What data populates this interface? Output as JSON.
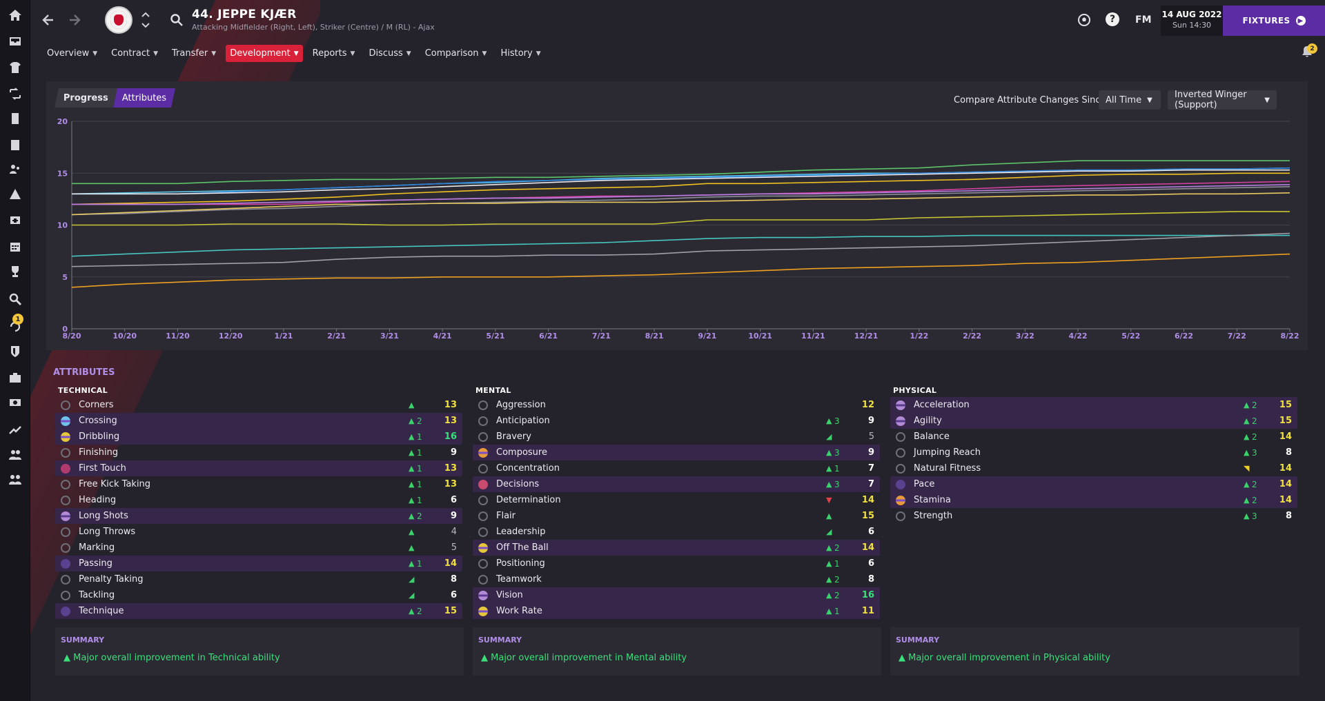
{
  "header": {
    "player_title": "44. JEPPE KJÆR",
    "player_subtitle": "Attacking Midfielder (Right, Left), Striker (Centre) / M (RL) - Ajax",
    "fm_label": "FM",
    "date": "14 AUG 2022",
    "time": "Sun 14:30",
    "fixtures_label": "FIXTURES",
    "help_label": "?",
    "bell_count": "2",
    "sidebar_badge": "1"
  },
  "menu": [
    {
      "label": "Overview",
      "active": false
    },
    {
      "label": "Contract",
      "active": false
    },
    {
      "label": "Transfer",
      "active": false
    },
    {
      "label": "Development",
      "active": true
    },
    {
      "label": "Reports",
      "active": false
    },
    {
      "label": "Discuss",
      "active": false
    },
    {
      "label": "Comparison",
      "active": false
    },
    {
      "label": "History",
      "active": false
    }
  ],
  "tabs": {
    "progress": "Progress",
    "attributes": "Attributes"
  },
  "compare": {
    "label": "Compare Attribute Changes Since",
    "period": "All Time",
    "role": "Inverted Winger (Support)"
  },
  "chart_data": {
    "type": "line",
    "x": [
      "8/20",
      "10/20",
      "11/20",
      "12/20",
      "1/21",
      "2/21",
      "3/21",
      "4/21",
      "5/21",
      "6/21",
      "7/21",
      "8/21",
      "9/21",
      "10/21",
      "11/21",
      "12/21",
      "1/22",
      "2/22",
      "3/22",
      "4/22",
      "5/22",
      "6/22",
      "7/22",
      "8/22"
    ],
    "ylim": [
      0,
      20
    ],
    "yticks": [
      0,
      5,
      10,
      15,
      20
    ],
    "grid": true,
    "series": [
      {
        "color": "#5cc46a",
        "values": [
          14,
          14,
          14,
          14.2,
          14.3,
          14.4,
          14.4,
          14.5,
          14.6,
          14.6,
          14.7,
          14.8,
          14.9,
          15.1,
          15.3,
          15.4,
          15.5,
          15.8,
          16,
          16.2,
          16.2,
          16.2,
          16.2,
          16.2
        ]
      },
      {
        "color": "#59c6e8",
        "values": [
          13,
          13.1,
          13.2,
          13.3,
          13.4,
          13.6,
          13.8,
          14,
          14.1,
          14.3,
          14.5,
          14.6,
          14.7,
          14.8,
          14.9,
          15,
          15,
          15.1,
          15.2,
          15.3,
          15.3,
          15.4,
          15.4,
          15.5
        ]
      },
      {
        "color": "#2f7fd6",
        "values": [
          13,
          13,
          13,
          13.2,
          13.4,
          13.6,
          13.8,
          14,
          14.2,
          14.3,
          14.4,
          14.5,
          14.6,
          14.7,
          14.8,
          14.9,
          15,
          15.1,
          15.2,
          15.3,
          15.3,
          15.4,
          15.4,
          15.5
        ]
      },
      {
        "color": "#e8e8ec",
        "values": [
          13,
          13,
          13,
          13.1,
          13.2,
          13.4,
          13.5,
          13.7,
          13.9,
          14.1,
          14.3,
          14.4,
          14.5,
          14.6,
          14.7,
          14.8,
          14.9,
          15,
          15.1,
          15.2,
          15.2,
          15.3,
          15.3,
          15.3
        ]
      },
      {
        "color": "#f0c020",
        "values": [
          12,
          12.1,
          12.2,
          12.3,
          12.5,
          12.7,
          13,
          13.2,
          13.4,
          13.5,
          13.6,
          13.7,
          14,
          14,
          14.1,
          14.2,
          14.3,
          14.4,
          14.6,
          14.8,
          14.9,
          14.9,
          15,
          15
        ]
      },
      {
        "color": "#d040a0",
        "values": [
          12,
          12,
          12,
          12,
          12,
          12.2,
          12.4,
          12.5,
          12.6,
          12.7,
          12.8,
          12.8,
          12.9,
          13,
          13.1,
          13.2,
          13.3,
          13.5,
          13.7,
          13.8,
          13.9,
          14,
          14.1,
          14.2
        ]
      },
      {
        "color": "#b57ee0",
        "values": [
          12,
          12,
          12,
          12.1,
          12.2,
          12.3,
          12.4,
          12.5,
          12.6,
          12.6,
          12.7,
          12.8,
          12.9,
          13,
          13,
          13.1,
          13.2,
          13.3,
          13.4,
          13.5,
          13.6,
          13.7,
          13.8,
          13.9
        ]
      },
      {
        "color": "#8c8c98",
        "values": [
          11,
          11.1,
          11.3,
          11.5,
          11.6,
          11.8,
          12,
          12.1,
          12.2,
          12.3,
          12.4,
          12.5,
          12.7,
          12.8,
          12.8,
          12.9,
          13,
          13.1,
          13.2,
          13.3,
          13.4,
          13.5,
          13.6,
          13.7
        ]
      },
      {
        "color": "#e8c860",
        "values": [
          11,
          11.2,
          11.4,
          11.6,
          11.8,
          12,
          12,
          12.1,
          12.1,
          12.2,
          12.2,
          12.2,
          12.3,
          12.4,
          12.5,
          12.5,
          12.6,
          12.7,
          12.8,
          12.9,
          12.9,
          13,
          13,
          13.1
        ]
      },
      {
        "color": "#c8c832",
        "values": [
          10,
          10,
          10,
          10.1,
          10.1,
          10.1,
          10,
          10,
          10.1,
          10.1,
          10.1,
          10.1,
          10.5,
          10.5,
          10.5,
          10.5,
          10.7,
          10.8,
          10.9,
          11,
          11.1,
          11.2,
          11.3,
          11.3
        ]
      },
      {
        "color": "#46c6c0",
        "values": [
          7,
          7.2,
          7.4,
          7.6,
          7.7,
          7.8,
          7.9,
          8,
          8.1,
          8.2,
          8.3,
          8.5,
          8.7,
          8.8,
          8.8,
          8.9,
          8.9,
          9,
          9,
          9,
          9,
          9,
          9,
          9
        ]
      },
      {
        "color": "#a0a0aa",
        "values": [
          6,
          6.1,
          6.2,
          6.3,
          6.4,
          6.7,
          6.9,
          7,
          7,
          7.1,
          7.1,
          7.2,
          7.5,
          7.6,
          7.7,
          7.8,
          7.9,
          8,
          8.2,
          8.4,
          8.6,
          8.8,
          9,
          9.2
        ]
      },
      {
        "color": "#f0a020",
        "values": [
          4,
          4.3,
          4.5,
          4.7,
          4.8,
          4.9,
          4.9,
          5,
          5,
          5,
          5.1,
          5.2,
          5.4,
          5.6,
          5.8,
          5.9,
          6,
          6.1,
          6.3,
          6.4,
          6.6,
          6.8,
          7,
          7.2
        ]
      }
    ]
  },
  "attributes": {
    "heading": "ATTRIBUTES",
    "technical": {
      "title": "TECHNICAL",
      "rows": [
        {
          "name": "Corners",
          "delta": "",
          "value": "13",
          "hl": false,
          "icon": "",
          "vc": "yellow",
          "ac": "up"
        },
        {
          "name": "Crossing",
          "delta": "2",
          "value": "13",
          "hl": true,
          "icon": "f2",
          "vc": "yellow",
          "ac": "up"
        },
        {
          "name": "Dribbling",
          "delta": "1",
          "value": "16",
          "hl": true,
          "icon": "f1",
          "vc": "green",
          "ac": "up"
        },
        {
          "name": "Finishing",
          "delta": "1",
          "value": "9",
          "hl": false,
          "icon": "",
          "vc": "",
          "ac": "up"
        },
        {
          "name": "First Touch",
          "delta": "1",
          "value": "13",
          "hl": true,
          "icon": "f3",
          "vc": "yellow",
          "ac": "up"
        },
        {
          "name": "Free Kick Taking",
          "delta": "1",
          "value": "13",
          "hl": false,
          "icon": "",
          "vc": "yellow",
          "ac": "up"
        },
        {
          "name": "Heading",
          "delta": "1",
          "value": "6",
          "hl": false,
          "icon": "",
          "vc": "",
          "ac": "up"
        },
        {
          "name": "Long Shots",
          "delta": "2",
          "value": "9",
          "hl": true,
          "icon": "f4",
          "vc": "",
          "ac": "up"
        },
        {
          "name": "Long Throws",
          "delta": "",
          "value": "4",
          "hl": false,
          "icon": "",
          "vc": "grey",
          "ac": "up"
        },
        {
          "name": "Marking",
          "delta": "",
          "value": "5",
          "hl": false,
          "icon": "",
          "vc": "grey",
          "ac": "up"
        },
        {
          "name": "Passing",
          "delta": "1",
          "value": "14",
          "hl": true,
          "icon": "f5",
          "vc": "yellow",
          "ac": "up"
        },
        {
          "name": "Penalty Taking",
          "delta": "",
          "value": "8",
          "hl": false,
          "icon": "",
          "vc": "",
          "ac": "upr"
        },
        {
          "name": "Tackling",
          "delta": "",
          "value": "6",
          "hl": false,
          "icon": "",
          "vc": "",
          "ac": "upr"
        },
        {
          "name": "Technique",
          "delta": "2",
          "value": "15",
          "hl": true,
          "icon": "f5",
          "vc": "yellow",
          "ac": "up"
        }
      ]
    },
    "mental": {
      "title": "MENTAL",
      "rows": [
        {
          "name": "Aggression",
          "delta": "",
          "value": "12",
          "hl": false,
          "icon": "",
          "vc": "yellow",
          "ac": ""
        },
        {
          "name": "Anticipation",
          "delta": "3",
          "value": "9",
          "hl": false,
          "icon": "",
          "vc": "",
          "ac": "up"
        },
        {
          "name": "Bravery",
          "delta": "",
          "value": "5",
          "hl": false,
          "icon": "",
          "vc": "grey",
          "ac": "upr"
        },
        {
          "name": "Composure",
          "delta": "3",
          "value": "9",
          "hl": true,
          "icon": "f6",
          "vc": "",
          "ac": "up"
        },
        {
          "name": "Concentration",
          "delta": "1",
          "value": "7",
          "hl": false,
          "icon": "",
          "vc": "",
          "ac": "up"
        },
        {
          "name": "Decisions",
          "delta": "3",
          "value": "7",
          "hl": true,
          "icon": "f7",
          "vc": "",
          "ac": "up"
        },
        {
          "name": "Determination",
          "delta": "",
          "value": "14",
          "hl": false,
          "icon": "",
          "vc": "yellow",
          "ac": "dn"
        },
        {
          "name": "Flair",
          "delta": "",
          "value": "15",
          "hl": false,
          "icon": "",
          "vc": "yellow",
          "ac": "up"
        },
        {
          "name": "Leadership",
          "delta": "",
          "value": "6",
          "hl": false,
          "icon": "",
          "vc": "",
          "ac": "upr"
        },
        {
          "name": "Off The Ball",
          "delta": "2",
          "value": "14",
          "hl": true,
          "icon": "f1",
          "vc": "yellow",
          "ac": "up"
        },
        {
          "name": "Positioning",
          "delta": "1",
          "value": "6",
          "hl": false,
          "icon": "",
          "vc": "",
          "ac": "up"
        },
        {
          "name": "Teamwork",
          "delta": "2",
          "value": "8",
          "hl": false,
          "icon": "",
          "vc": "",
          "ac": "up"
        },
        {
          "name": "Vision",
          "delta": "2",
          "value": "16",
          "hl": true,
          "icon": "f4",
          "vc": "green",
          "ac": "up"
        },
        {
          "name": "Work Rate",
          "delta": "1",
          "value": "11",
          "hl": true,
          "icon": "f1",
          "vc": "yellow",
          "ac": "up"
        }
      ]
    },
    "physical": {
      "title": "PHYSICAL",
      "rows": [
        {
          "name": "Acceleration",
          "delta": "2",
          "value": "15",
          "hl": true,
          "icon": "f4",
          "vc": "yellow",
          "ac": "up"
        },
        {
          "name": "Agility",
          "delta": "2",
          "value": "15",
          "hl": true,
          "icon": "f4",
          "vc": "yellow",
          "ac": "up"
        },
        {
          "name": "Balance",
          "delta": "2",
          "value": "14",
          "hl": false,
          "icon": "",
          "vc": "yellow",
          "ac": "up"
        },
        {
          "name": "Jumping Reach",
          "delta": "3",
          "value": "8",
          "hl": false,
          "icon": "",
          "vc": "",
          "ac": "up"
        },
        {
          "name": "Natural Fitness",
          "delta": "",
          "value": "14",
          "hl": false,
          "icon": "",
          "vc": "yellow",
          "ac": "yl"
        },
        {
          "name": "Pace",
          "delta": "2",
          "value": "14",
          "hl": true,
          "icon": "f5",
          "vc": "yellow",
          "ac": "up"
        },
        {
          "name": "Stamina",
          "delta": "2",
          "value": "14",
          "hl": true,
          "icon": "f6",
          "vc": "yellow",
          "ac": "up"
        },
        {
          "name": "Strength",
          "delta": "3",
          "value": "8",
          "hl": false,
          "icon": "",
          "vc": "",
          "ac": "up"
        }
      ]
    }
  },
  "summaries": [
    {
      "title": "SUMMARY",
      "text": "Major overall improvement in Technical ability"
    },
    {
      "title": "SUMMARY",
      "text": "Major overall improvement in Mental ability"
    },
    {
      "title": "SUMMARY",
      "text": "Major overall improvement in Physical ability"
    }
  ]
}
